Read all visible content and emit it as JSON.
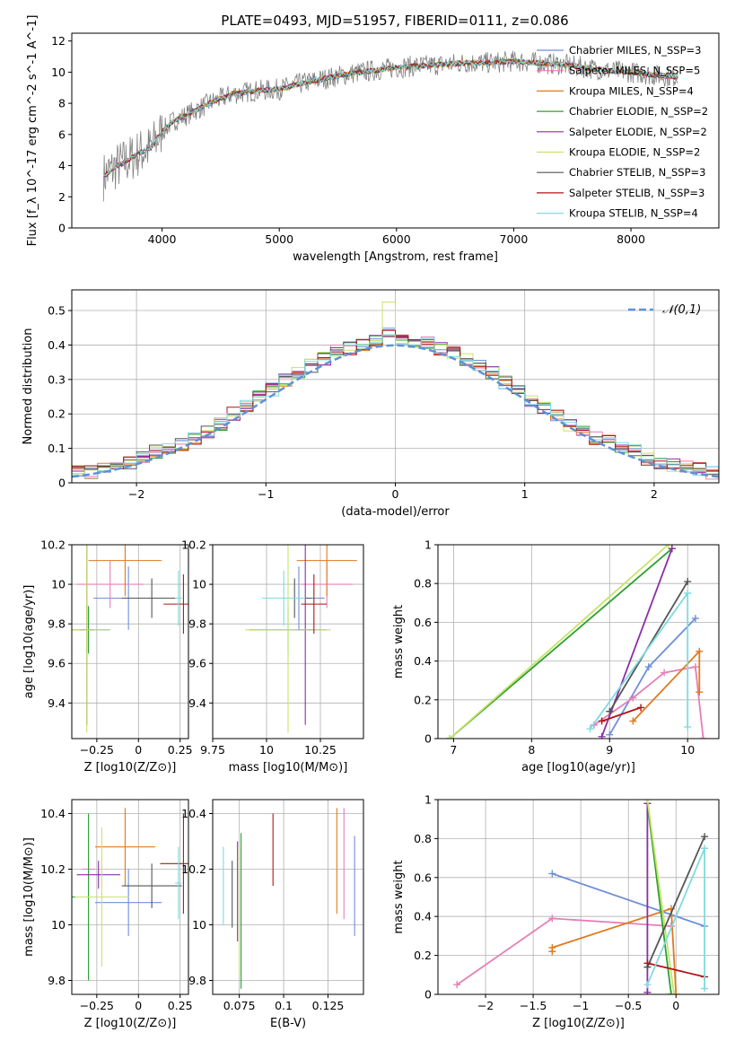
{
  "chart_data": [
    {
      "type": "line",
      "title": "PLATE=0493, MJD=51957, FIBERID=0111, z=0.086",
      "xlabel": "wavelength [Angstrom, rest frame]",
      "ylabel": "Flux [f_λ 10^-17 erg cm^-2 s^-1 A^-1]",
      "xlim": [
        3230,
        8750
      ],
      "ylim": [
        0,
        12.5
      ],
      "xticks": [
        4000,
        5000,
        6000,
        7000,
        8000
      ],
      "yticks": [
        0,
        2,
        4,
        6,
        8,
        10,
        12
      ],
      "legend_position": "right",
      "series": [
        {
          "name": "Chabrier MILES, N_SSP=3",
          "color": "#6f8fd8"
        },
        {
          "name": "Salpeter MILES, N_SSP=5",
          "color": "#e67fb8"
        },
        {
          "name": "Kroupa MILES, N_SSP=4",
          "color": "#e07a1f"
        },
        {
          "name": "Chabrier ELODIE, N_SSP=2",
          "color": "#2ca02c"
        },
        {
          "name": "Salpeter ELODIE, N_SSP=2",
          "color": "#8b2ea6"
        },
        {
          "name": "Kroupa ELODIE, N_SSP=2",
          "color": "#c7e36b"
        },
        {
          "name": "Chabrier STELIB, N_SSP=3",
          "color": "#555555"
        },
        {
          "name": "Salpeter STELIB, N_SSP=3",
          "color": "#b01515"
        },
        {
          "name": "Kroupa STELIB, N_SSP=4",
          "color": "#7fdbe0"
        }
      ],
      "data": {
        "wavelength": [
          3500,
          3600,
          3700,
          3800,
          3900,
          4000,
          4100,
          4200,
          4400,
          4600,
          4800,
          5000,
          5200,
          5400,
          5600,
          5800,
          6000,
          6200,
          6400,
          6600,
          6800,
          7000,
          7200,
          7400,
          7600,
          7800,
          8000,
          8200,
          8400
        ],
        "flux": [
          3.3,
          3.9,
          4.3,
          4.8,
          5.1,
          6.2,
          6.9,
          7.2,
          8.0,
          8.6,
          8.8,
          8.9,
          9.3,
          9.6,
          9.9,
          10.1,
          10.3,
          10.4,
          10.5,
          10.6,
          10.6,
          10.7,
          10.6,
          10.5,
          10.3,
          10.1,
          10.0,
          9.8,
          9.7
        ]
      }
    },
    {
      "type": "histogram",
      "xlabel": "(data-model)/error",
      "ylabel": "Normed distribution",
      "xlim": [
        -2.5,
        2.5
      ],
      "ylim": [
        0,
        0.56
      ],
      "xticks": [
        -2,
        -1,
        0,
        1,
        2
      ],
      "yticks": [
        0.0,
        0.1,
        0.2,
        0.3,
        0.4,
        0.5
      ],
      "legend": "𝒩(0,1)",
      "reference_curve": "normal pdf, mean 0, sigma 1",
      "bin_width": 0.1,
      "bin_centers": [
        -2.45,
        -2.35,
        -2.25,
        -2.15,
        -2.05,
        -1.95,
        -1.85,
        -1.75,
        -1.65,
        -1.55,
        -1.45,
        -1.35,
        -1.25,
        -1.15,
        -1.05,
        -0.95,
        -0.85,
        -0.75,
        -0.65,
        -0.55,
        -0.45,
        -0.35,
        -0.25,
        -0.15,
        -0.05,
        0.05,
        0.15,
        0.25,
        0.35,
        0.45,
        0.55,
        0.65,
        0.75,
        0.85,
        0.95,
        1.05,
        1.15,
        1.25,
        1.35,
        1.45,
        1.55,
        1.65,
        1.75,
        1.85,
        1.95,
        2.05,
        2.15,
        2.25,
        2.35,
        2.45
      ],
      "density": [
        0.03,
        0.03,
        0.04,
        0.05,
        0.06,
        0.07,
        0.09,
        0.1,
        0.11,
        0.13,
        0.15,
        0.17,
        0.2,
        0.22,
        0.25,
        0.27,
        0.3,
        0.32,
        0.34,
        0.36,
        0.38,
        0.39,
        0.4,
        0.41,
        0.44,
        0.42,
        0.41,
        0.41,
        0.39,
        0.38,
        0.36,
        0.34,
        0.32,
        0.29,
        0.27,
        0.24,
        0.22,
        0.2,
        0.17,
        0.15,
        0.13,
        0.12,
        0.1,
        0.09,
        0.07,
        0.06,
        0.05,
        0.05,
        0.04,
        0.03
      ]
    },
    {
      "type": "scatter",
      "xlabel": "Z [log10(Z/Z⊙)]",
      "ylabel": "age [log10(age/yr)]",
      "xlim": [
        -0.4,
        0.3
      ],
      "ylim": [
        9.22,
        10.2
      ],
      "xticks": [
        -0.25,
        0.0,
        0.25
      ],
      "yticks": [
        9.4,
        9.6,
        9.8,
        10.0,
        10.2
      ],
      "points": [
        {
          "x": -0.06,
          "y": 9.93,
          "xerr": 0.21,
          "yerr": 0.16,
          "color": "#6f8fd8"
        },
        {
          "x": -0.17,
          "y": 10.0,
          "xerr": 0.2,
          "yerr": 0.12,
          "color": "#e67fb8"
        },
        {
          "x": -0.08,
          "y": 10.12,
          "xerr": 0.22,
          "yerr": 0.18,
          "color": "#e07a1f"
        },
        {
          "x": -0.3,
          "y": 9.77,
          "xerr": 0.13,
          "yerr": 0.12,
          "color": "#2ca02c"
        },
        {
          "x": -0.31,
          "y": 9.77,
          "xerr": 0.04,
          "yerr": 0.48,
          "color": "#8b2ea6"
        },
        {
          "x": -0.31,
          "y": 9.77,
          "xerr": 0.14,
          "yerr": 0.52,
          "color": "#c7e36b"
        },
        {
          "x": 0.08,
          "y": 9.93,
          "xerr": 0.18,
          "yerr": 0.1,
          "color": "#555555"
        },
        {
          "x": 0.27,
          "y": 9.9,
          "xerr": 0.12,
          "yerr": 0.15,
          "color": "#b01515"
        },
        {
          "x": 0.24,
          "y": 9.93,
          "xerr": 0.02,
          "yerr": 0.14,
          "color": "#7fdbe0"
        }
      ]
    },
    {
      "type": "scatter",
      "xlabel": "mass [log10(M/M⊙)]",
      "ylabel": "",
      "xlim": [
        9.75,
        10.45
      ],
      "ylim": [
        9.22,
        10.2
      ],
      "xticks": [
        9.75,
        10.0,
        10.25
      ],
      "yticks": [
        9.4,
        9.6,
        9.8,
        10.0,
        10.2
      ],
      "points": [
        {
          "x": 10.15,
          "y": 9.93,
          "xerr": 0.12,
          "yerr": 0.16,
          "color": "#6f8fd8"
        },
        {
          "x": 10.28,
          "y": 10.0,
          "xerr": 0.12,
          "yerr": 0.12,
          "color": "#e67fb8"
        },
        {
          "x": 10.28,
          "y": 10.12,
          "xerr": 0.14,
          "yerr": 0.18,
          "color": "#e07a1f"
        },
        {
          "x": 10.1,
          "y": 9.77,
          "xerr": 0.18,
          "yerr": 0.12,
          "color": "#2ca02c"
        },
        {
          "x": 10.18,
          "y": 9.77,
          "xerr": 0.04,
          "yerr": 0.48,
          "color": "#8b2ea6"
        },
        {
          "x": 10.1,
          "y": 9.77,
          "xerr": 0.2,
          "yerr": 0.52,
          "color": "#c7e36b"
        },
        {
          "x": 10.13,
          "y": 9.93,
          "xerr": 0.08,
          "yerr": 0.1,
          "color": "#555555"
        },
        {
          "x": 10.22,
          "y": 9.9,
          "xerr": 0.06,
          "yerr": 0.15,
          "color": "#b01515"
        },
        {
          "x": 10.08,
          "y": 9.93,
          "xerr": 0.1,
          "yerr": 0.14,
          "color": "#7fdbe0"
        }
      ]
    },
    {
      "type": "line",
      "xlabel": "age [log10(age/yr)]",
      "ylabel": "mass weight",
      "xlim": [
        6.8,
        10.4
      ],
      "ylim": [
        0,
        1.0
      ],
      "xticks": [
        7,
        8,
        9,
        10
      ],
      "yticks": [
        0.0,
        0.2,
        0.4,
        0.6,
        0.8,
        1.0
      ],
      "series": [
        {
          "color": "#6f8fd8",
          "points": [
            [
              9.0,
              0.02
            ],
            [
              9.5,
              0.37
            ],
            [
              10.1,
              0.62
            ]
          ]
        },
        {
          "color": "#e67fb8",
          "points": [
            [
              8.8,
              0.07
            ],
            [
              9.3,
              0.21
            ],
            [
              9.7,
              0.34
            ],
            [
              10.1,
              0.37
            ],
            [
              10.2,
              0.0
            ]
          ]
        },
        {
          "color": "#e07a1f",
          "points": [
            [
              9.3,
              0.09
            ],
            [
              10.15,
              0.45
            ],
            [
              10.15,
              0.24
            ]
          ]
        },
        {
          "color": "#2ca02c",
          "points": [
            [
              6.95,
              0.0
            ],
            [
              9.8,
              0.98
            ]
          ]
        },
        {
          "color": "#8b2ea6",
          "points": [
            [
              8.9,
              0.01
            ],
            [
              9.8,
              0.98
            ]
          ]
        },
        {
          "color": "#c7e36b",
          "points": [
            [
              6.95,
              0.0
            ],
            [
              9.75,
              1.0
            ]
          ]
        },
        {
          "color": "#555555",
          "points": [
            [
              9.0,
              0.14
            ],
            [
              10.0,
              0.81
            ]
          ]
        },
        {
          "color": "#b01515",
          "points": [
            [
              8.9,
              0.09
            ],
            [
              9.4,
              0.16
            ]
          ]
        },
        {
          "color": "#7fdbe0",
          "points": [
            [
              8.75,
              0.05
            ],
            [
              10.0,
              0.75
            ],
            [
              10.0,
              0.06
            ]
          ]
        }
      ]
    },
    {
      "type": "scatter",
      "xlabel": "Z [log10(Z/Z⊙)]",
      "ylabel": "mass [log10(M/M⊙)]",
      "xlim": [
        -0.4,
        0.3
      ],
      "ylim": [
        9.75,
        10.45
      ],
      "xticks": [
        -0.25,
        0.0,
        0.25
      ],
      "yticks": [
        9.8,
        10.0,
        10.2,
        10.4
      ],
      "points": [
        {
          "x": -0.06,
          "y": 10.08,
          "xerr": 0.2,
          "yerr": 0.12,
          "color": "#6f8fd8"
        },
        {
          "x": -0.3,
          "y": 10.2,
          "xerr": 0.04,
          "yerr": 0.04,
          "color": "#e67fb8"
        },
        {
          "x": -0.08,
          "y": 10.28,
          "xerr": 0.18,
          "yerr": 0.14,
          "color": "#e07a1f"
        },
        {
          "x": -0.3,
          "y": 10.1,
          "xerr": 0.1,
          "yerr": 0.3,
          "color": "#2ca02c"
        },
        {
          "x": -0.24,
          "y": 10.18,
          "xerr": 0.13,
          "yerr": 0.05,
          "color": "#8b2ea6"
        },
        {
          "x": -0.22,
          "y": 10.1,
          "xerr": 0.16,
          "yerr": 0.25,
          "color": "#c7e36b"
        },
        {
          "x": 0.08,
          "y": 10.14,
          "xerr": 0.18,
          "yerr": 0.08,
          "color": "#555555"
        },
        {
          "x": 0.27,
          "y": 10.22,
          "xerr": 0.14,
          "yerr": 0.18,
          "color": "#b01515"
        },
        {
          "x": 0.24,
          "y": 10.15,
          "xerr": 0.02,
          "yerr": 0.13,
          "color": "#7fdbe0"
        }
      ]
    },
    {
      "type": "scatter",
      "xlabel": "E(B-V)",
      "ylabel": "",
      "xlim": [
        0.06,
        0.145
      ],
      "ylim": [
        9.75,
        10.45
      ],
      "xticks": [
        0.075,
        0.1,
        0.125
      ],
      "yticks": [
        9.8,
        10.0,
        10.2,
        10.4
      ],
      "points": [
        {
          "x": 0.14,
          "y": 10.14,
          "yerr": 0.18,
          "color": "#6f8fd8"
        },
        {
          "x": 0.134,
          "y": 10.22,
          "yerr": 0.2,
          "color": "#e67fb8"
        },
        {
          "x": 0.13,
          "y": 10.23,
          "yerr": 0.19,
          "color": "#e07a1f"
        },
        {
          "x": 0.076,
          "y": 10.05,
          "yerr": 0.28,
          "color": "#2ca02c"
        },
        {
          "x": 0.074,
          "y": 10.12,
          "yerr": 0.18,
          "color": "#8b2ea6"
        },
        {
          "x": 0.075,
          "y": 10.05,
          "yerr": 0.23,
          "color": "#c7e36b"
        },
        {
          "x": 0.071,
          "y": 10.11,
          "yerr": 0.12,
          "color": "#555555"
        },
        {
          "x": 0.094,
          "y": 10.27,
          "yerr": 0.13,
          "color": "#b01515"
        },
        {
          "x": 0.066,
          "y": 10.14,
          "yerr": 0.14,
          "color": "#7fdbe0"
        }
      ]
    },
    {
      "type": "line",
      "xlabel": "Z [log10(Z/Z⊙)]",
      "ylabel": "mass weight",
      "xlim": [
        -2.5,
        0.45
      ],
      "ylim": [
        0,
        1.0
      ],
      "xticks": [
        -2.0,
        -1.5,
        -1.0,
        -0.5,
        0.0
      ],
      "yticks": [
        0.0,
        0.2,
        0.4,
        0.6,
        0.8,
        1.0
      ],
      "series": [
        {
          "color": "#6f8fd8",
          "points": [
            [
              -1.3,
              0.62
            ],
            [
              0.3,
              0.35
            ]
          ]
        },
        {
          "color": "#e67fb8",
          "points": [
            [
              -2.3,
              0.05
            ],
            [
              -1.3,
              0.39
            ],
            [
              -0.05,
              0.35
            ]
          ]
        },
        {
          "color": "#e07a1f",
          "points": [
            [
              -1.3,
              0.22
            ],
            [
              -1.3,
              0.24
            ],
            [
              -0.05,
              0.44
            ],
            [
              0.0,
              0.0
            ]
          ]
        },
        {
          "color": "#2ca02c",
          "points": [
            [
              -0.3,
              0.98
            ],
            [
              -0.05,
              0.0
            ]
          ]
        },
        {
          "color": "#8b2ea6",
          "points": [
            [
              -0.3,
              0.98
            ],
            [
              -0.3,
              0.01
            ]
          ]
        },
        {
          "color": "#c7e36b",
          "points": [
            [
              -0.3,
              1.0
            ],
            [
              -0.02,
              0.0
            ]
          ]
        },
        {
          "color": "#555555",
          "points": [
            [
              -0.3,
              0.14
            ],
            [
              0.3,
              0.81
            ]
          ]
        },
        {
          "color": "#b01515",
          "points": [
            [
              -0.3,
              0.16
            ],
            [
              0.3,
              0.09
            ]
          ]
        },
        {
          "color": "#7fdbe0",
          "points": [
            [
              -0.3,
              0.05
            ],
            [
              0.3,
              0.75
            ],
            [
              0.3,
              0.03
            ]
          ]
        }
      ]
    }
  ]
}
